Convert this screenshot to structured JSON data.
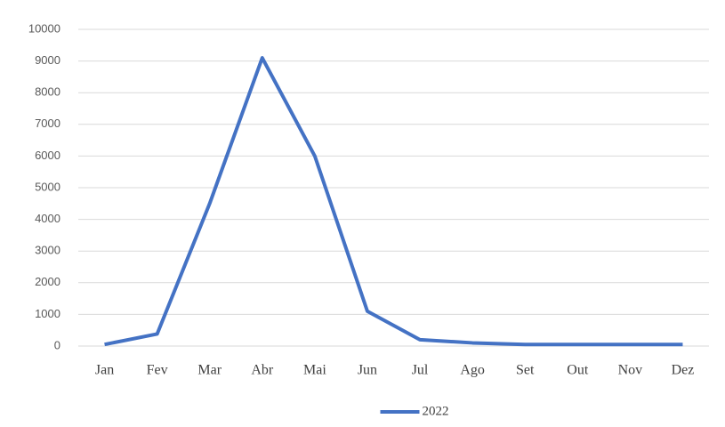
{
  "chart_data": {
    "type": "line",
    "categories": [
      "Jan",
      "Fev",
      "Mar",
      "Abr",
      "Mai",
      "Jun",
      "Jul",
      "Ago",
      "Set",
      "Out",
      "Nov",
      "Dez"
    ],
    "series": [
      {
        "name": "2022",
        "color": "#4472c4",
        "values": [
          50,
          380,
          4500,
          9100,
          6000,
          1100,
          200,
          100,
          50,
          50,
          50,
          50
        ]
      }
    ],
    "ylim": [
      0,
      10000
    ],
    "yticks": [
      0,
      1000,
      2000,
      3000,
      4000,
      5000,
      6000,
      7000,
      8000,
      9000,
      10000
    ],
    "grid": true,
    "legend": "bottom"
  }
}
